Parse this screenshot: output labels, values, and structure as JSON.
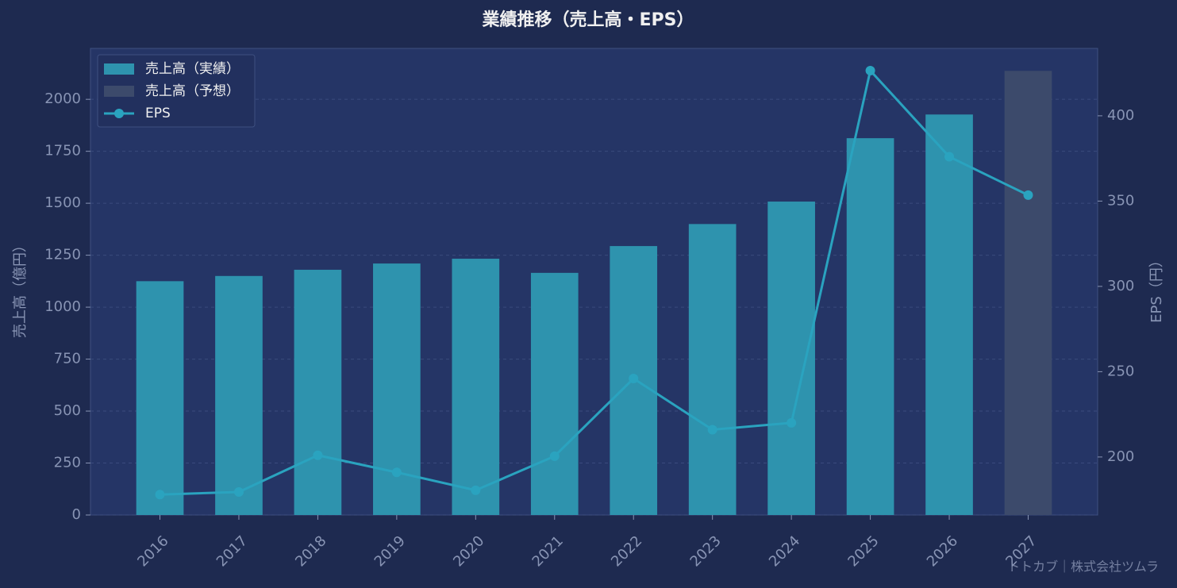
{
  "chart_data": {
    "type": "bar-line",
    "title": "業績推移（売上高・EPS）",
    "y_label": "売上高（億円）",
    "y2_label": "EPS（円）",
    "watermark": "トトカブ｜株式会社ツムラ",
    "categories": [
      "2016",
      "2017",
      "2018",
      "2019",
      "2020",
      "2021",
      "2022",
      "2023",
      "2024",
      "2025",
      "2026",
      "2027"
    ],
    "series": [
      {
        "name": "売上高（実績）",
        "kind": "bar",
        "color": "#2e93ae",
        "values": [
          1125,
          1150,
          1180,
          1210,
          1233,
          1165,
          1294,
          1400,
          1508,
          1813,
          1927,
          null
        ]
      },
      {
        "name": "売上高（予想）",
        "kind": "bar",
        "color": "#3c4a6b",
        "values": [
          null,
          null,
          null,
          null,
          null,
          null,
          null,
          null,
          null,
          null,
          null,
          2137
        ]
      },
      {
        "name": "EPS",
        "kind": "line",
        "axis": "y2",
        "color": "#2aa3bf",
        "values": [
          178,
          179.5,
          201,
          191,
          180.5,
          200.5,
          246,
          216,
          220,
          426.5,
          376,
          353.5
        ]
      }
    ],
    "ylim": [
      0,
      2245
    ],
    "yticks": [
      0,
      250,
      500,
      750,
      1000,
      1250,
      1500,
      1750,
      2000
    ],
    "y2lim": [
      166,
      439.5
    ],
    "y2ticks": [
      200,
      250,
      300,
      350,
      400
    ],
    "grid": true,
    "legend": "upper left"
  }
}
